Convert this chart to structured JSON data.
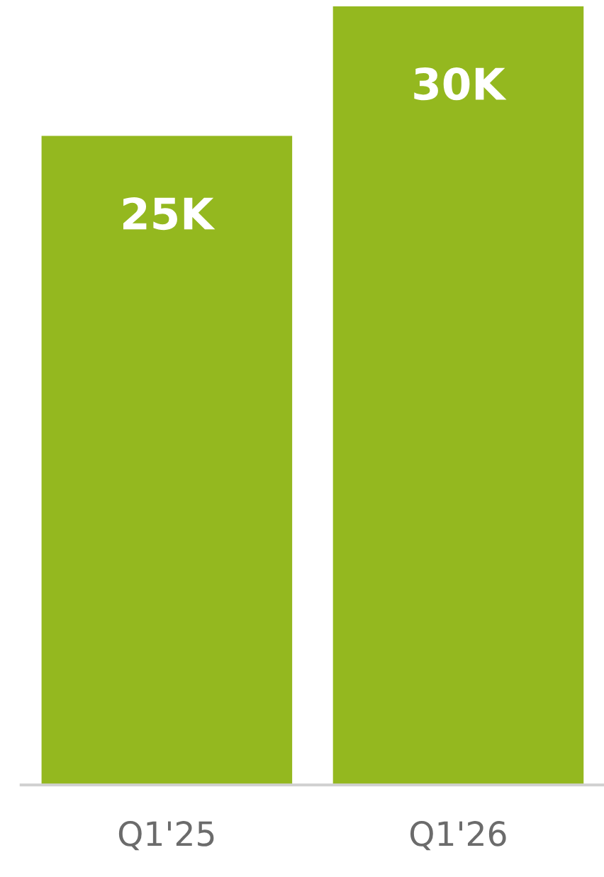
{
  "chart_data": {
    "type": "bar",
    "categories": [
      "Q1'25",
      "Q1'26"
    ],
    "values": [
      25000,
      30000
    ],
    "value_labels": [
      "25K",
      "30K"
    ],
    "color": "#94b81f",
    "grid": false,
    "legend": false
  }
}
